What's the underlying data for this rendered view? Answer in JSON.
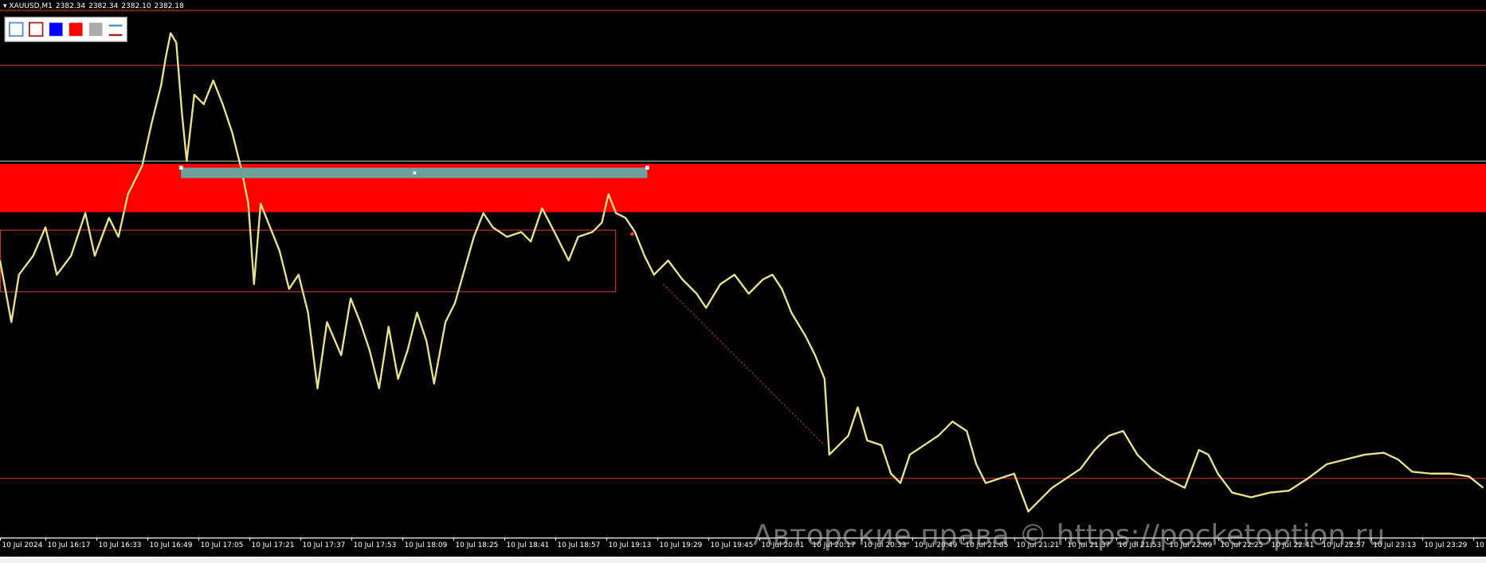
{
  "header": {
    "symbol": "XAUUSD,M1",
    "prices": [
      "2382.34",
      "2382.34",
      "2382.10",
      "2382.18"
    ]
  },
  "time_axis": [
    "10 Jul 2024",
    "10 Jul 16:17",
    "10 Jul 16:33",
    "10 Jul 16:49",
    "10 Jul 17:05",
    "10 Jul 17:21",
    "10 Jul 17:37",
    "10 Jul 17:53",
    "10 Jul 18:09",
    "10 Jul 18:25",
    "10 Jul 18:41",
    "10 Jul 18:57",
    "10 Jul 19:13",
    "10 Jul 19:29",
    "10 Jul 19:45",
    "10 Jul 20:01",
    "10 Jul 20:17",
    "10 Jul 20:33",
    "10 Jul 20:49",
    "10 Jul 21:05",
    "10 Jul 21:21",
    "10 Jul 21:37",
    "10 Jul 21:53",
    "10 Jul 22:09",
    "10 Jul 22:25",
    "10 Jul 22:41",
    "10 Jul 22:57",
    "10 Jul 23:13",
    "10 Jul 23:29",
    "10"
  ],
  "watermark": "Авторские права © https://pocketoption.ru"
}
